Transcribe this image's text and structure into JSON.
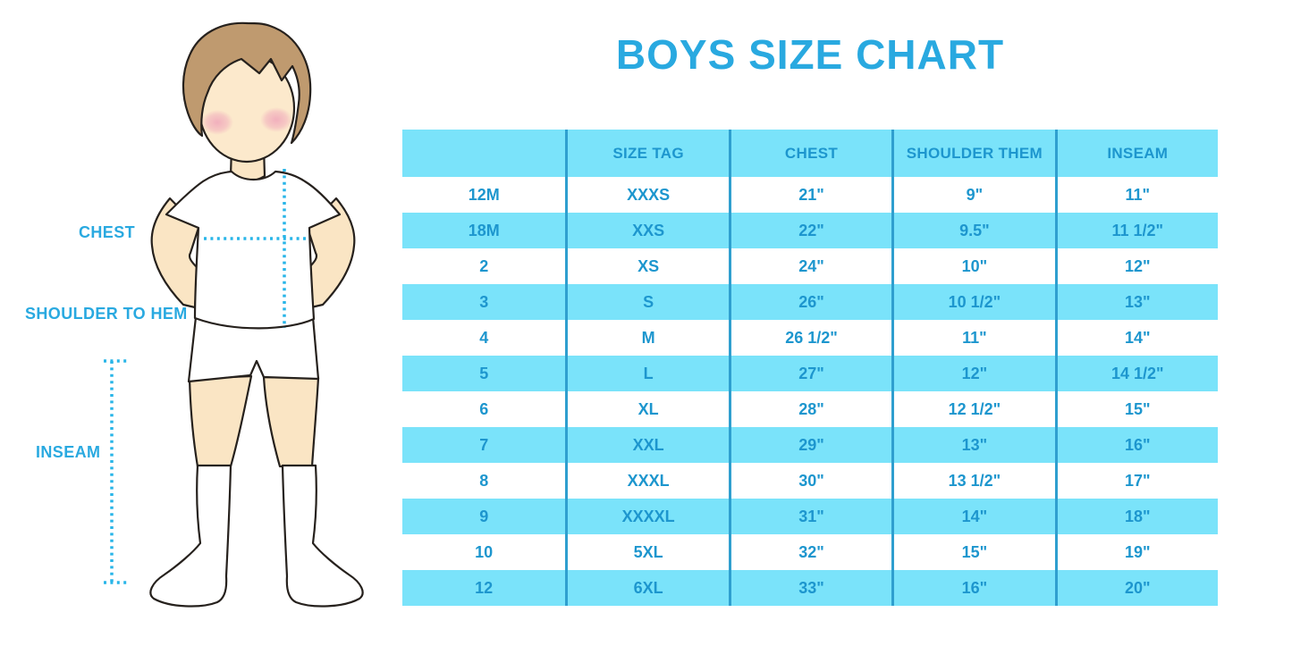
{
  "title": "BOYS SIZE CHART",
  "figure": {
    "labels": {
      "chest": "CHEST",
      "shoulder_to_hem": "SHOULDER TO HEM",
      "inseam": "INSEAM"
    }
  },
  "chart_data": {
    "type": "table",
    "title": "BOYS SIZE CHART",
    "columns": [
      "",
      "SIZE TAG",
      "CHEST",
      "SHOULDER THEM",
      "INSEAM"
    ],
    "rows": [
      [
        "12M",
        "XXXS",
        "21\"",
        "9\"",
        "11\""
      ],
      [
        "18M",
        "XXS",
        "22\"",
        "9.5\"",
        "11 1/2\""
      ],
      [
        "2",
        "XS",
        "24\"",
        "10\"",
        "12\""
      ],
      [
        "3",
        "S",
        "26\"",
        "10 1/2\"",
        "13\""
      ],
      [
        "4",
        "M",
        "26 1/2\"",
        "11\"",
        "14\""
      ],
      [
        "5",
        "L",
        "27\"",
        "12\"",
        "14 1/2\""
      ],
      [
        "6",
        "XL",
        "28\"",
        "12 1/2\"",
        "15\""
      ],
      [
        "7",
        "XXL",
        "29\"",
        "13\"",
        "16\""
      ],
      [
        "8",
        "XXXL",
        "30\"",
        "13 1/2\"",
        "17\""
      ],
      [
        "9",
        "XXXXL",
        "31\"",
        "14\"",
        "18\""
      ],
      [
        "10",
        "5XL",
        "32\"",
        "15\"",
        "19\""
      ],
      [
        "12",
        "6XL",
        "33\"",
        "16\"",
        "20\""
      ]
    ]
  },
  "colors": {
    "title_blue": "#29a9e0",
    "table_text_blue": "#1d96ce",
    "band_cyan": "#7ae3fa",
    "divider_blue": "#2f9fcf",
    "dotted_line_cyan": "#29b5e8",
    "skin": "#fae5c4",
    "face_skin": "#fce9cc",
    "hair_brown": "#bf9a6f",
    "blush_pink": "#f0a9bb",
    "outline_dark": "#26211d"
  }
}
